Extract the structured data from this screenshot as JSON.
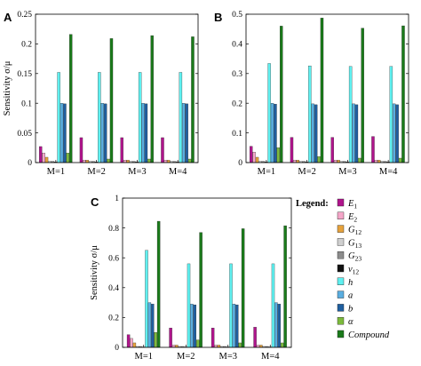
{
  "legend": {
    "title": "Legend:",
    "entries": [
      {
        "label": "E1",
        "color": "#b0148c"
      },
      {
        "label": "E2",
        "color": "#f4a6c8"
      },
      {
        "label": "G12",
        "color": "#e6a23c"
      },
      {
        "label": "G13",
        "color": "#cfcfcf"
      },
      {
        "label": "G23",
        "color": "#8c8c8c"
      },
      {
        "label": "ν12",
        "color": "#111111"
      },
      {
        "label": "h",
        "color": "#5ff0f0"
      },
      {
        "label": "a",
        "color": "#5aaee0"
      },
      {
        "label": "b",
        "color": "#1f5fa0"
      },
      {
        "label": "α",
        "color": "#7cba3c"
      },
      {
        "label": "Compound",
        "color": "#1a7a1a"
      }
    ]
  },
  "chart_data": [
    {
      "panel": "A",
      "type": "bar",
      "categories": [
        "M=1",
        "M=2",
        "M=3",
        "M=4"
      ],
      "ylabel": "Sensitivity σ/μ",
      "ylim": [
        0,
        0.25
      ],
      "yticks": [
        "0",
        "0.05",
        "0.1",
        "0.15",
        "0.2",
        "0.25"
      ],
      "ytick_values": [
        0,
        0.05,
        0.1,
        0.15,
        0.2,
        0.25
      ],
      "series": [
        {
          "name": "E1",
          "values": [
            0.027,
            0.042,
            0.042,
            0.042
          ]
        },
        {
          "name": "E2",
          "values": [
            0.016,
            0.004,
            0.004,
            0.004
          ]
        },
        {
          "name": "G12",
          "values": [
            0.009,
            0.004,
            0.004,
            0.004
          ]
        },
        {
          "name": "G13",
          "values": [
            0.002,
            0.002,
            0.002,
            0.002
          ]
        },
        {
          "name": "G23",
          "values": [
            0.002,
            0.002,
            0.002,
            0.002
          ]
        },
        {
          "name": "ν12",
          "values": [
            0.001,
            0.001,
            0.001,
            0.001
          ]
        },
        {
          "name": "h",
          "values": [
            0.152,
            0.152,
            0.152,
            0.152
          ]
        },
        {
          "name": "a",
          "values": [
            0.1,
            0.1,
            0.1,
            0.1
          ]
        },
        {
          "name": "b",
          "values": [
            0.099,
            0.099,
            0.099,
            0.099
          ]
        },
        {
          "name": "α",
          "values": [
            0.016,
            0.006,
            0.006,
            0.006
          ]
        },
        {
          "name": "Compound",
          "values": [
            0.216,
            0.209,
            0.214,
            0.212
          ]
        }
      ]
    },
    {
      "panel": "B",
      "type": "bar",
      "categories": [
        "M=1",
        "M=2",
        "M=3",
        "M=4"
      ],
      "ylabel": "",
      "ylim": [
        0,
        0.5
      ],
      "yticks": [
        "0",
        "0.1",
        "0.2",
        "0.3",
        "0.4",
        "0.5"
      ],
      "ytick_values": [
        0,
        0.1,
        0.2,
        0.3,
        0.4,
        0.5
      ],
      "series": [
        {
          "name": "E1",
          "values": [
            0.055,
            0.085,
            0.085,
            0.088
          ]
        },
        {
          "name": "E2",
          "values": [
            0.035,
            0.008,
            0.008,
            0.008
          ]
        },
        {
          "name": "G12",
          "values": [
            0.018,
            0.008,
            0.008,
            0.008
          ]
        },
        {
          "name": "G13",
          "values": [
            0.004,
            0.004,
            0.004,
            0.004
          ]
        },
        {
          "name": "G23",
          "values": [
            0.004,
            0.004,
            0.004,
            0.004
          ]
        },
        {
          "name": "ν12",
          "values": [
            0.002,
            0.002,
            0.002,
            0.002
          ]
        },
        {
          "name": "h",
          "values": [
            0.334,
            0.326,
            0.324,
            0.324
          ]
        },
        {
          "name": "a",
          "values": [
            0.2,
            0.198,
            0.198,
            0.198
          ]
        },
        {
          "name": "b",
          "values": [
            0.197,
            0.195,
            0.195,
            0.195
          ]
        },
        {
          "name": "α",
          "values": [
            0.05,
            0.02,
            0.015,
            0.015
          ]
        },
        {
          "name": "Compound",
          "values": [
            0.46,
            0.487,
            0.453,
            0.461
          ]
        }
      ]
    },
    {
      "panel": "C",
      "type": "bar",
      "categories": [
        "M=1",
        "M=2",
        "M=3",
        "M=4"
      ],
      "ylabel": "Sensitivity σ/μ",
      "ylim": [
        0,
        1
      ],
      "yticks": [
        "0",
        "0.2",
        "0.4",
        "0.6",
        "0.8",
        "1"
      ],
      "ytick_values": [
        0,
        0.2,
        0.4,
        0.6,
        0.8,
        1.0
      ],
      "series": [
        {
          "name": "E1",
          "values": [
            0.085,
            0.13,
            0.13,
            0.135
          ]
        },
        {
          "name": "E2",
          "values": [
            0.06,
            0.015,
            0.015,
            0.015
          ]
        },
        {
          "name": "G12",
          "values": [
            0.03,
            0.015,
            0.015,
            0.015
          ]
        },
        {
          "name": "G13",
          "values": [
            0.006,
            0.006,
            0.006,
            0.006
          ]
        },
        {
          "name": "G23",
          "values": [
            0.006,
            0.006,
            0.006,
            0.006
          ]
        },
        {
          "name": "ν12",
          "values": [
            0.003,
            0.003,
            0.003,
            0.003
          ]
        },
        {
          "name": "h",
          "values": [
            0.65,
            0.56,
            0.56,
            0.56
          ]
        },
        {
          "name": "a",
          "values": [
            0.3,
            0.29,
            0.29,
            0.3
          ]
        },
        {
          "name": "b",
          "values": [
            0.29,
            0.285,
            0.285,
            0.29
          ]
        },
        {
          "name": "α",
          "values": [
            0.1,
            0.05,
            0.03,
            0.03
          ]
        },
        {
          "name": "Compound",
          "values": [
            0.845,
            0.77,
            0.795,
            0.815
          ]
        }
      ]
    }
  ]
}
